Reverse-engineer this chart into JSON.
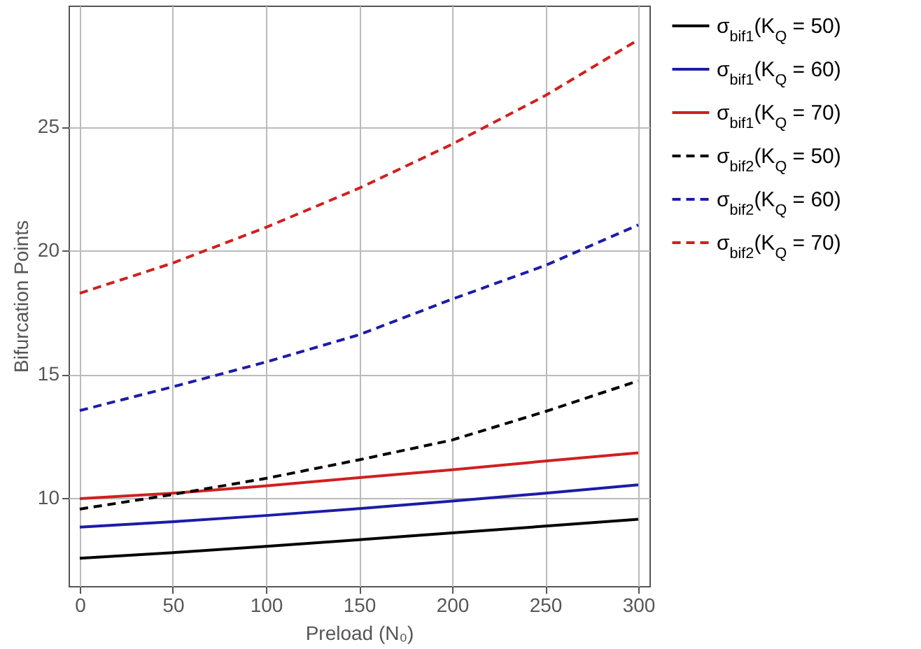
{
  "chart_data": {
    "type": "line",
    "xlabel": "Preload (N₀)",
    "ylabel": "Bifurcation Points",
    "x": [
      0,
      50,
      100,
      150,
      200,
      250,
      300
    ],
    "xlim": [
      -6,
      306
    ],
    "ylim": [
      6.45,
      29.9
    ],
    "xticks": [
      0,
      50,
      100,
      150,
      200,
      250,
      300
    ],
    "yticks": [
      10,
      15,
      20,
      25
    ],
    "grid": true,
    "legend": "right",
    "series": [
      {
        "name": "σ$_{bif1}$(K$_{Q}$ = 50)",
        "color": "#000000",
        "line_style": "solid",
        "values": [
          7.57,
          7.8,
          8.05,
          8.32,
          8.6,
          8.87,
          9.15
        ]
      },
      {
        "name": "σ$_{bif1}$(K$_{Q}$ = 60)",
        "color": "#1c1ca8",
        "line_style": "solid",
        "values": [
          8.83,
          9.05,
          9.3,
          9.58,
          9.88,
          10.2,
          10.54
        ]
      },
      {
        "name": "σ$_{bif1}$(K$_{Q}$ = 70)",
        "color": "#d02020",
        "line_style": "solid",
        "values": [
          9.98,
          10.2,
          10.5,
          10.83,
          11.15,
          11.5,
          11.83
        ]
      },
      {
        "name": "σ$_{bif2}$(K$_{Q}$ = 50)",
        "color": "#000000",
        "line_style": "dashed",
        "values": [
          9.56,
          10.15,
          10.8,
          11.55,
          12.35,
          13.5,
          14.74
        ]
      },
      {
        "name": "σ$_{bif2}$(K$_{Q}$ = 60)",
        "color": "#1c1ca8",
        "line_style": "dashed",
        "values": [
          13.54,
          14.5,
          15.5,
          16.6,
          18.04,
          19.4,
          21.04
        ]
      },
      {
        "name": "σ$_{bif2}$(K$_{Q}$ = 70)",
        "color": "#d02020",
        "line_style": "dashed",
        "values": [
          18.28,
          19.5,
          20.94,
          22.52,
          24.3,
          26.26,
          28.52
        ]
      }
    ]
  }
}
